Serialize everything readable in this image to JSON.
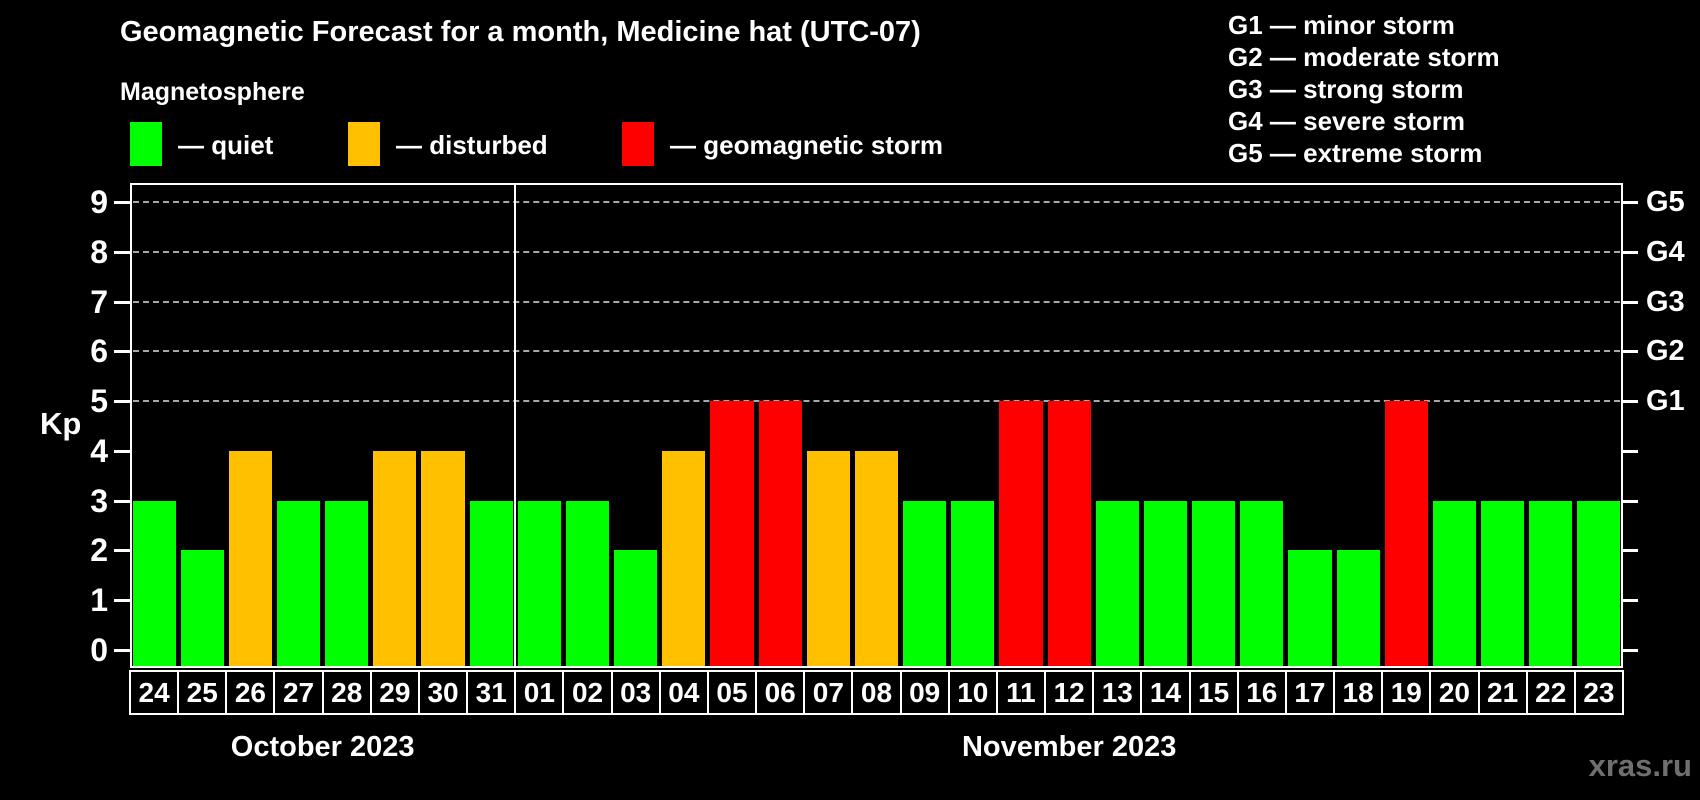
{
  "title": "Geomagnetic Forecast for a month, Medicine hat (UTC-07)",
  "subtitle": "Magnetosphere",
  "watermark": "xras.ru",
  "colors": {
    "background": "#000000",
    "text": "#ffffff",
    "quiet": "#00ff00",
    "disturbed": "#ffc000",
    "storm": "#ff0000",
    "grid": "#a8a8a8",
    "axis": "#ffffff",
    "watermark": "#6f6f6f"
  },
  "status_legend": [
    {
      "status": "quiet",
      "label": "— quiet"
    },
    {
      "status": "disturbed",
      "label": "— disturbed"
    },
    {
      "status": "storm",
      "label": "— geomagnetic storm"
    }
  ],
  "g_scale_legend": [
    "G1 — minor storm",
    "G2 — moderate storm",
    "G3 — strong storm",
    "G4 — severe storm",
    "G5 — extreme storm"
  ],
  "chart_data": {
    "type": "bar",
    "title": "Geomagnetic Forecast for a month, Medicine hat (UTC-07)",
    "ylabel": "Kp",
    "ylim": [
      0,
      9
    ],
    "yticks": [
      0,
      1,
      2,
      3,
      4,
      5,
      6,
      7,
      8,
      9
    ],
    "gridlines_at_kp": [
      5,
      6,
      7,
      8,
      9
    ],
    "right_axis_labels": [
      {
        "kp": 5,
        "label": "G1"
      },
      {
        "kp": 6,
        "label": "G2"
      },
      {
        "kp": 7,
        "label": "G3"
      },
      {
        "kp": 8,
        "label": "G4"
      },
      {
        "kp": 9,
        "label": "G5"
      }
    ],
    "months": [
      {
        "label": "October 2023",
        "days": 8
      },
      {
        "label": "November 2023",
        "days": 23
      }
    ],
    "categories": [
      "24",
      "25",
      "26",
      "27",
      "28",
      "29",
      "30",
      "31",
      "01",
      "02",
      "03",
      "04",
      "05",
      "06",
      "07",
      "08",
      "09",
      "10",
      "11",
      "12",
      "13",
      "14",
      "15",
      "16",
      "17",
      "18",
      "19",
      "20",
      "21",
      "22",
      "23"
    ],
    "values": [
      3,
      2,
      4,
      3,
      3,
      4,
      4,
      3,
      3,
      3,
      2,
      4,
      5,
      5,
      4,
      4,
      3,
      3,
      5,
      5,
      3,
      3,
      3,
      3,
      2,
      2,
      5,
      3,
      3,
      3,
      3
    ],
    "statuses": [
      "quiet",
      "quiet",
      "disturbed",
      "quiet",
      "quiet",
      "disturbed",
      "disturbed",
      "quiet",
      "quiet",
      "quiet",
      "quiet",
      "disturbed",
      "storm",
      "storm",
      "disturbed",
      "disturbed",
      "quiet",
      "quiet",
      "storm",
      "storm",
      "quiet",
      "quiet",
      "quiet",
      "quiet",
      "quiet",
      "quiet",
      "storm",
      "quiet",
      "quiet",
      "quiet",
      "quiet"
    ],
    "legend_position": "top-left",
    "grid": "dashed horizontal at G-levels only"
  }
}
